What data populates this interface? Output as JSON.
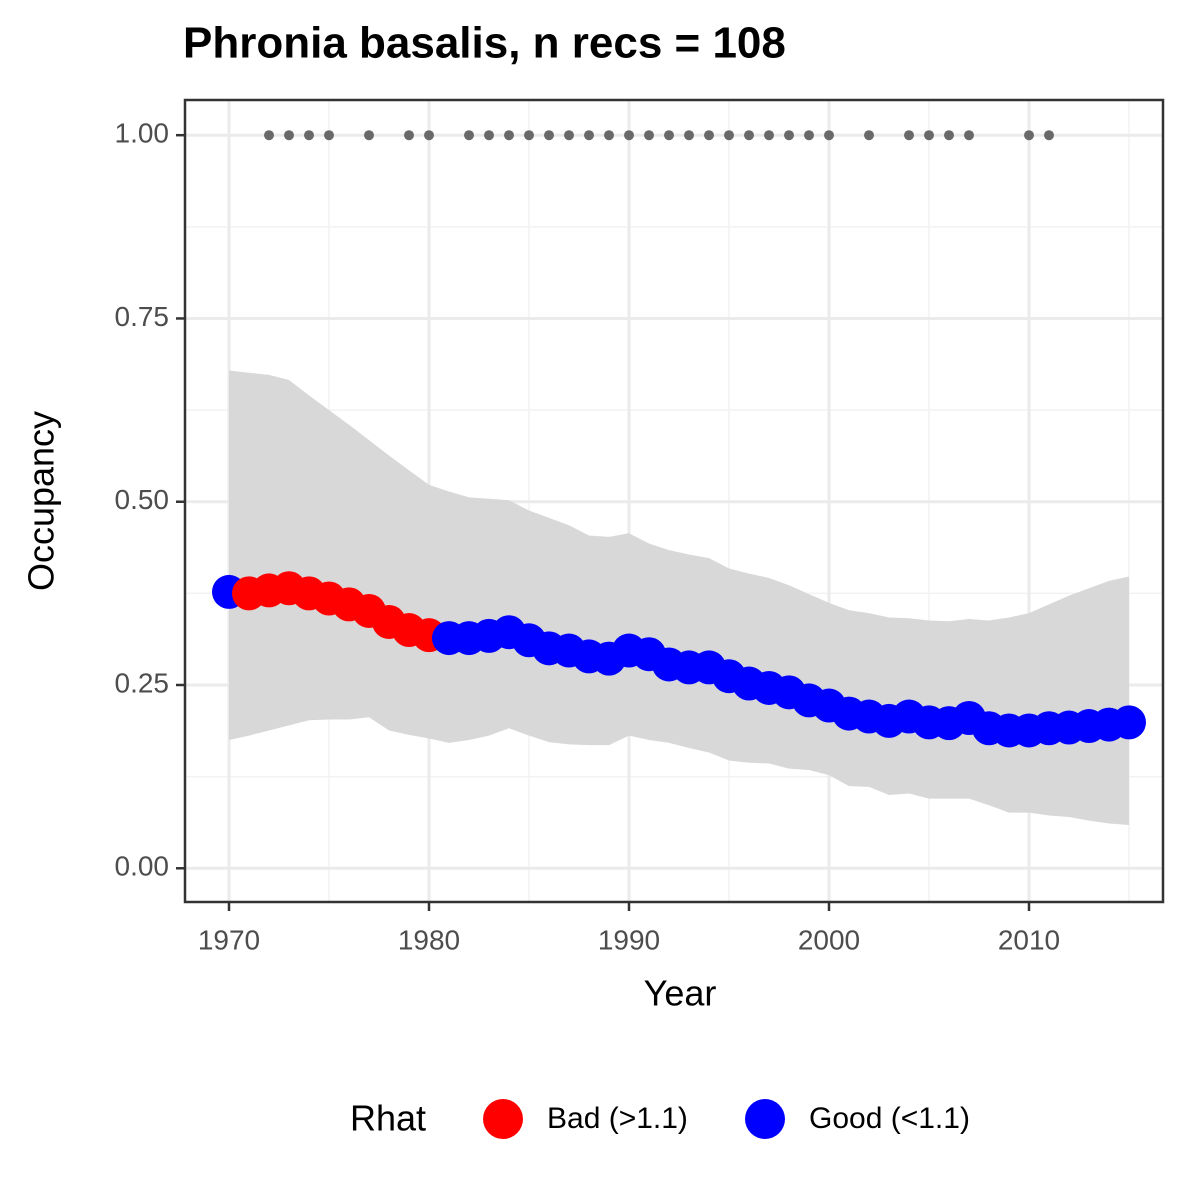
{
  "chart_data": {
    "type": "scatter",
    "title": "Phronia basalis, n recs = 108",
    "x_label": "Year",
    "y_label": "Occupancy",
    "x": [
      1970,
      1971,
      1972,
      1973,
      1974,
      1975,
      1976,
      1977,
      1978,
      1979,
      1980,
      1981,
      1982,
      1983,
      1984,
      1985,
      1986,
      1987,
      1988,
      1989,
      1990,
      1991,
      1992,
      1993,
      1994,
      1995,
      1996,
      1997,
      1998,
      1999,
      2000,
      2001,
      2002,
      2003,
      2004,
      2005,
      2006,
      2007,
      2008,
      2009,
      2010,
      2011,
      2012,
      2013,
      2014,
      2015
    ],
    "legend_title": "Rhat",
    "series": [
      {
        "name": "Bad (>1.1)",
        "color": "#ff0000",
        "values": [
          null,
          0.375,
          0.379,
          0.382,
          0.375,
          0.368,
          0.36,
          0.351,
          0.336,
          0.325,
          0.318,
          null,
          null,
          null,
          null,
          null,
          null,
          null,
          null,
          null,
          null,
          null,
          null,
          null,
          null,
          null,
          null,
          null,
          null,
          null,
          null,
          null,
          null,
          null,
          null,
          null,
          null,
          null,
          null,
          null,
          null,
          null,
          null,
          null,
          null,
          null
        ]
      },
      {
        "name": "Good (<1.1)",
        "color": "#0000ff",
        "values": [
          0.377,
          null,
          null,
          null,
          null,
          null,
          null,
          null,
          null,
          null,
          null,
          0.314,
          0.314,
          0.317,
          0.322,
          0.311,
          0.3,
          0.297,
          0.289,
          0.286,
          0.297,
          0.292,
          0.278,
          0.274,
          0.274,
          0.262,
          0.252,
          0.246,
          0.24,
          0.229,
          0.222,
          0.211,
          0.207,
          0.201,
          0.207,
          0.199,
          0.198,
          0.205,
          0.191,
          0.188,
          0.188,
          0.191,
          0.192,
          0.194,
          0.196,
          0.199
        ]
      }
    ],
    "ribbon": {
      "color": "#d6d6d6",
      "upper": [
        0.679,
        0.676,
        0.673,
        0.666,
        0.645,
        0.625,
        0.605,
        0.584,
        0.563,
        0.543,
        0.523,
        0.514,
        0.506,
        0.504,
        0.502,
        0.488,
        0.478,
        0.468,
        0.454,
        0.452,
        0.457,
        0.443,
        0.434,
        0.428,
        0.423,
        0.409,
        0.402,
        0.396,
        0.386,
        0.374,
        0.362,
        0.352,
        0.348,
        0.342,
        0.341,
        0.338,
        0.337,
        0.34,
        0.338,
        0.342,
        0.348,
        0.36,
        0.372,
        0.382,
        0.392,
        0.398
      ],
      "lower": [
        0.175,
        0.181,
        0.188,
        0.195,
        0.202,
        0.203,
        0.203,
        0.206,
        0.188,
        0.182,
        0.177,
        0.171,
        0.175,
        0.181,
        0.191,
        0.181,
        0.172,
        0.169,
        0.168,
        0.168,
        0.181,
        0.175,
        0.171,
        0.164,
        0.158,
        0.147,
        0.144,
        0.143,
        0.136,
        0.134,
        0.127,
        0.112,
        0.111,
        0.1,
        0.102,
        0.095,
        0.095,
        0.095,
        0.086,
        0.076,
        0.076,
        0.072,
        0.07,
        0.065,
        0.061,
        0.059
      ]
    },
    "records": {
      "color": "#696969",
      "x": [
        1972,
        1973,
        1974,
        1975,
        1977,
        1979,
        1980,
        1982,
        1983,
        1984,
        1985,
        1986,
        1987,
        1988,
        1989,
        1990,
        1991,
        1992,
        1993,
        1994,
        1995,
        1996,
        1997,
        1998,
        1999,
        2000,
        2002,
        2004,
        2005,
        2006,
        2007,
        2010,
        2011
      ],
      "values": [
        1,
        1,
        1,
        1,
        1,
        1,
        1,
        1,
        1,
        1,
        1,
        1,
        1,
        1,
        1,
        1,
        1,
        1,
        1,
        1,
        1,
        1,
        1,
        1,
        1,
        1,
        1,
        1,
        1,
        1,
        1,
        1,
        1
      ]
    },
    "xlim": [
      1967.8,
      2016.7
    ],
    "ylim": [
      -0.046,
      1.048
    ],
    "xticks": [
      1970,
      1980,
      1990,
      2000,
      2010
    ],
    "yticks": [
      {
        "value": 0,
        "label": "0.00"
      },
      0.25,
      {
        "value": 0.5,
        "label": "0.50"
      },
      0.75,
      {
        "value": 1,
        "label": "1.00"
      }
    ],
    "minor_xticks": [
      1975,
      1985,
      1995,
      2005,
      2015
    ],
    "minor_yticks": [
      0.125,
      0.375,
      0.625,
      0.875
    ],
    "grid": true
  }
}
